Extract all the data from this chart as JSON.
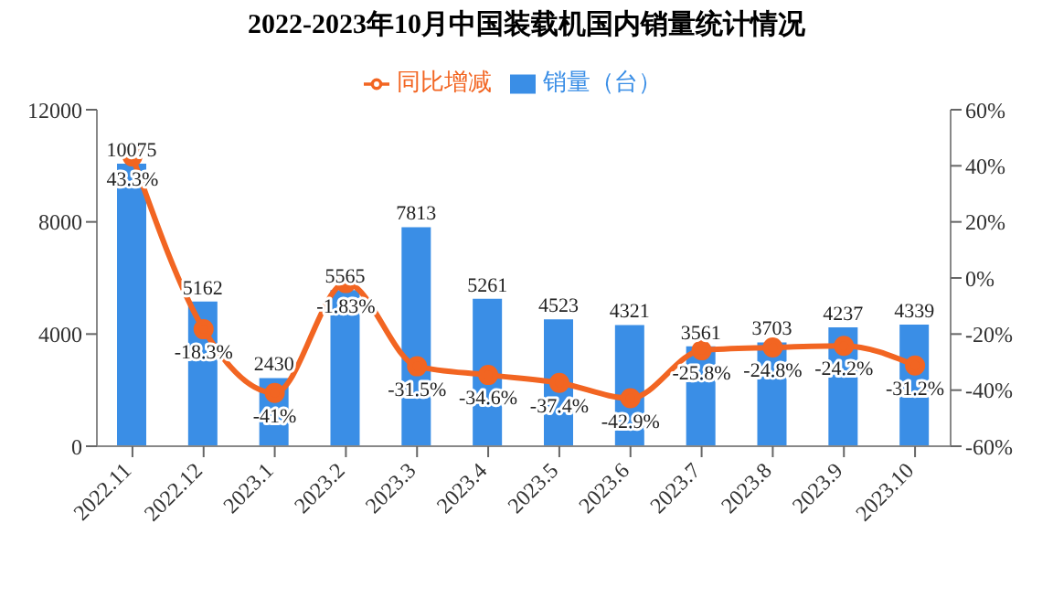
{
  "chart_data": {
    "type": "bar",
    "title": "2022-2023年10月中国装载机国内销量统计情况",
    "categories": [
      "2022.11",
      "2022.12",
      "2023.1",
      "2023.2",
      "2023.3",
      "2023.4",
      "2023.5",
      "2023.6",
      "2023.7",
      "2023.8",
      "2023.9",
      "2023.10"
    ],
    "series": [
      {
        "name": "销量（台）",
        "color": "#3a8ee6",
        "values": [
          10075,
          5162,
          2430,
          5565,
          7813,
          5261,
          4523,
          4321,
          3561,
          3703,
          4237,
          4339
        ],
        "value_labels": [
          "10075",
          "5162",
          "2430",
          "5565",
          "7813",
          "5261",
          "4523",
          "4321",
          "3561",
          "3703",
          "4237",
          "4339"
        ]
      },
      {
        "name": "同比增减",
        "type": "line",
        "axis": "y2",
        "color": "#f26522",
        "marker": "circle",
        "values": [
          43.3,
          -18.3,
          -41,
          -1.83,
          -31.5,
          -34.6,
          -37.4,
          -42.9,
          -25.8,
          -24.8,
          -24.2,
          -31.2
        ],
        "value_labels": [
          "43.3%",
          "-18.3%",
          "-41%",
          "-1.83%",
          "-31.5%",
          "-34.6%",
          "-37.4%",
          "-42.9%",
          "-25.8%",
          "-24.8%",
          "-24.2%",
          "-31.2%"
        ]
      }
    ],
    "ylim": [
      0,
      12000
    ],
    "yticks": [
      0,
      4000,
      8000,
      12000
    ],
    "y2lim": [
      -60,
      60
    ],
    "y2ticks": [
      {
        "value": -60,
        "label": "-60%"
      },
      {
        "value": -40,
        "label": "-40%"
      },
      {
        "value": -20,
        "label": "-20%"
      },
      {
        "value": 0,
        "label": "0%"
      },
      {
        "value": 20,
        "label": "20%"
      },
      {
        "value": 40,
        "label": "40%"
      },
      {
        "value": 60,
        "label": "60%"
      }
    ],
    "legend": "top",
    "grid": false
  }
}
